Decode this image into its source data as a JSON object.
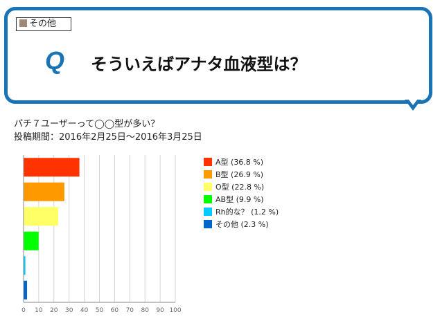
{
  "header": {
    "category_label": "その他",
    "q_mark": "Q",
    "question": "そういえばアナタ血液型は？"
  },
  "subtitle": {
    "line1": "パチ７ユーザーって◯◯型が多い？",
    "line2": "投稿期間：2016年2月25日〜2016年3月25日"
  },
  "colors": {
    "accent": "#1a73b5",
    "category_swatch": "#a08878"
  },
  "chart_data": {
    "type": "bar",
    "orientation": "horizontal",
    "categories": [
      "A型",
      "B型",
      "O型",
      "AB型",
      "Rh的な？",
      "その他"
    ],
    "values": [
      36.8,
      26.9,
      22.8,
      9.9,
      1.2,
      2.3
    ],
    "legend": [
      "A型 (36.8 %)",
      "B型 (26.9 %)",
      "O型 (22.8 %)",
      "AB型 (9.9 %)",
      "Rh的な？ (1.2 %)",
      "その他 (2.3 %)"
    ],
    "colors": [
      "#ff3300",
      "#ff9900",
      "#ffff66",
      "#00ff00",
      "#00ccff",
      "#0066cc"
    ],
    "xlim": [
      0,
      100
    ],
    "xticks": [
      0,
      10,
      20,
      30,
      40,
      50,
      60,
      70,
      80,
      90,
      100
    ],
    "grid": true,
    "legend_position": "right"
  }
}
